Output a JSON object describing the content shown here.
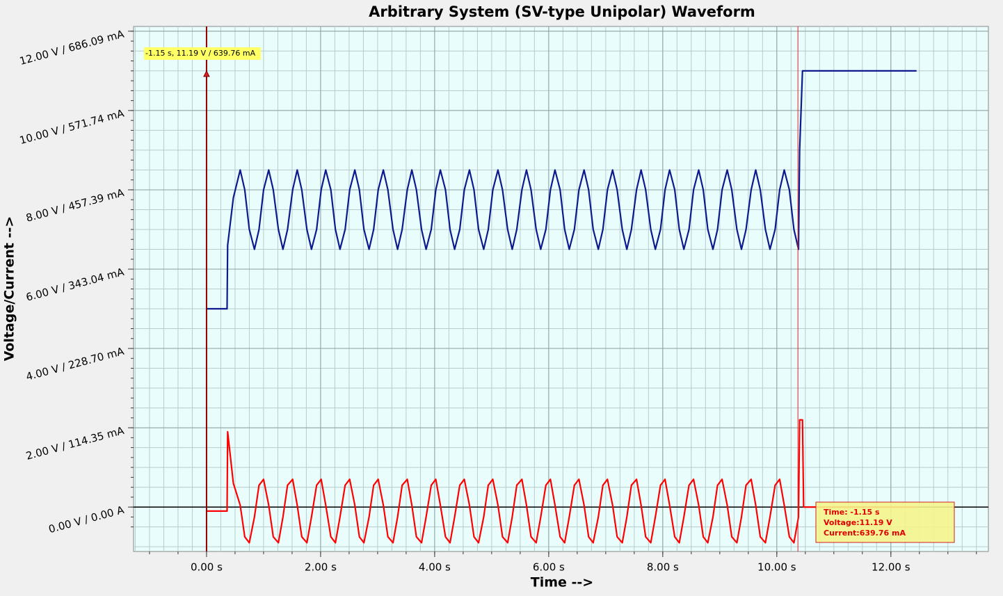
{
  "chart_data": {
    "type": "line",
    "title": "Arbitrary System (SV-type Unipolar) Waveform",
    "xlabel": "Time -->",
    "ylabel": "Voltage/Current -->",
    "xlim": [
      -1.28,
      13.71
    ],
    "ylim": [
      -1.12,
      12.12
    ],
    "xticks": [
      {
        "value": 0,
        "label": "0.00 s"
      },
      {
        "value": 2,
        "label": "2.00 s"
      },
      {
        "value": 4,
        "label": "4.00 s"
      },
      {
        "value": 6,
        "label": "6.00 s"
      },
      {
        "value": 8,
        "label": "8.00 s"
      },
      {
        "value": 10,
        "label": "10.00 s"
      },
      {
        "value": 12,
        "label": "12.00 s"
      }
    ],
    "yticks": [
      {
        "value": 0,
        "label": "0.00 V / 0.00 A"
      },
      {
        "value": 2,
        "label": "2.00 V / 114.35 mA"
      },
      {
        "value": 4,
        "label": "4.00 V / 228.70 mA"
      },
      {
        "value": 6,
        "label": "6.00 V / 343.04 mA"
      },
      {
        "value": 8,
        "label": "8.00 V / 457.39 mA"
      },
      {
        "value": 10,
        "label": "10.00 V / 571.74 mA"
      },
      {
        "value": 12,
        "label": "12.00 V / 686.09 mA"
      }
    ],
    "grid": true,
    "cursors": [
      0,
      10.37
    ],
    "cursor_label": "-1.15 s, 11.19 V / 639.76 mA",
    "readout": [
      "Time: -1.15 s",
      "Voltage:11.19 V",
      "Current:639.76 mA"
    ],
    "x": [
      0,
      0.36,
      0.37,
      0.47,
      0.59,
      0.67,
      0.75,
      0.84,
      0.92,
      1.0,
      1.09,
      1.17,
      1.26,
      1.34,
      1.42,
      1.51,
      1.59,
      1.67,
      1.76,
      1.84,
      1.93,
      2.01,
      2.09,
      2.18,
      2.26,
      2.34,
      2.43,
      2.51,
      2.6,
      2.68,
      2.76,
      2.85,
      2.93,
      3.01,
      3.1,
      3.18,
      3.27,
      3.35,
      3.43,
      3.52,
      3.6,
      3.68,
      3.77,
      3.85,
      3.94,
      4.02,
      4.1,
      4.19,
      4.27,
      4.35,
      4.44,
      4.52,
      4.61,
      4.69,
      4.77,
      4.86,
      4.94,
      5.02,
      5.11,
      5.19,
      5.28,
      5.36,
      5.44,
      5.53,
      5.61,
      5.69,
      5.78,
      5.86,
      5.95,
      6.03,
      6.11,
      6.2,
      6.28,
      6.36,
      6.45,
      6.53,
      6.62,
      6.7,
      6.78,
      6.87,
      6.95,
      7.03,
      7.12,
      7.2,
      7.29,
      7.37,
      7.45,
      7.54,
      7.62,
      7.7,
      7.79,
      7.87,
      7.96,
      8.04,
      8.12,
      8.21,
      8.29,
      8.37,
      8.46,
      8.54,
      8.63,
      8.71,
      8.79,
      8.88,
      8.96,
      9.04,
      9.13,
      9.21,
      9.3,
      9.38,
      9.46,
      9.55,
      9.63,
      9.71,
      9.8,
      9.88,
      9.97,
      10.05,
      10.13,
      10.22,
      10.3,
      10.38,
      10.4,
      10.45,
      10.47,
      12.45
    ],
    "series": [
      {
        "color": "#0d1a8c",
        "values": [
          5,
          5,
          6.6,
          7.8,
          8.5,
          8,
          7,
          6.5,
          7,
          8,
          8.5,
          8,
          7,
          6.5,
          7,
          8,
          8.5,
          8,
          7,
          6.5,
          7,
          8,
          8.5,
          8,
          7,
          6.5,
          7,
          8,
          8.5,
          8,
          7,
          6.5,
          7,
          8,
          8.5,
          8,
          7,
          6.5,
          7,
          8,
          8.5,
          8,
          7,
          6.5,
          7,
          8,
          8.5,
          8,
          7,
          6.5,
          7,
          8,
          8.5,
          8,
          7,
          6.5,
          7,
          8,
          8.5,
          8,
          7,
          6.5,
          7,
          8,
          8.5,
          8,
          7,
          6.5,
          7,
          8,
          8.5,
          8,
          7,
          6.5,
          7,
          8,
          8.5,
          8,
          7,
          6.5,
          7,
          8,
          8.5,
          8,
          7,
          6.5,
          7,
          8,
          8.5,
          8,
          7,
          6.5,
          7,
          8,
          8.5,
          8,
          7,
          6.5,
          7,
          8,
          8.5,
          8,
          7,
          6.5,
          7,
          8,
          8.5,
          8,
          7,
          6.5,
          7,
          8,
          8.5,
          8,
          7,
          6.5,
          7,
          8,
          8.5,
          8,
          7,
          6.5,
          9,
          11,
          11,
          11
        ]
      },
      {
        "color": "#ff0000",
        "values": [
          -0.1,
          -0.1,
          1.9,
          0.6,
          0.05,
          -0.75,
          -0.9,
          -0.25,
          0.55,
          0.7,
          0.05,
          -0.75,
          -0.9,
          -0.25,
          0.55,
          0.7,
          0.05,
          -0.75,
          -0.9,
          -0.25,
          0.55,
          0.7,
          0.05,
          -0.75,
          -0.9,
          -0.25,
          0.55,
          0.7,
          0.05,
          -0.75,
          -0.9,
          -0.25,
          0.55,
          0.7,
          0.05,
          -0.75,
          -0.9,
          -0.25,
          0.55,
          0.7,
          0.05,
          -0.75,
          -0.9,
          -0.25,
          0.55,
          0.7,
          0.05,
          -0.75,
          -0.9,
          -0.25,
          0.55,
          0.7,
          0.05,
          -0.75,
          -0.9,
          -0.25,
          0.55,
          0.7,
          0.05,
          -0.75,
          -0.9,
          -0.25,
          0.55,
          0.7,
          0.05,
          -0.75,
          -0.9,
          -0.25,
          0.55,
          0.7,
          0.05,
          -0.75,
          -0.9,
          -0.25,
          0.55,
          0.7,
          0.05,
          -0.75,
          -0.9,
          -0.25,
          0.55,
          0.7,
          0.05,
          -0.75,
          -0.9,
          -0.25,
          0.55,
          0.7,
          0.05,
          -0.75,
          -0.9,
          -0.25,
          0.55,
          0.7,
          0.05,
          -0.75,
          -0.9,
          -0.25,
          0.55,
          0.7,
          0.05,
          -0.75,
          -0.9,
          -0.25,
          0.55,
          0.7,
          0.05,
          -0.75,
          -0.9,
          -0.25,
          0.55,
          0.7,
          0.05,
          -0.75,
          -0.9,
          -0.25,
          0.55,
          0.7,
          0.05,
          -0.75,
          -0.9,
          -0.25,
          2.2,
          2.2,
          0,
          0
        ]
      }
    ]
  }
}
